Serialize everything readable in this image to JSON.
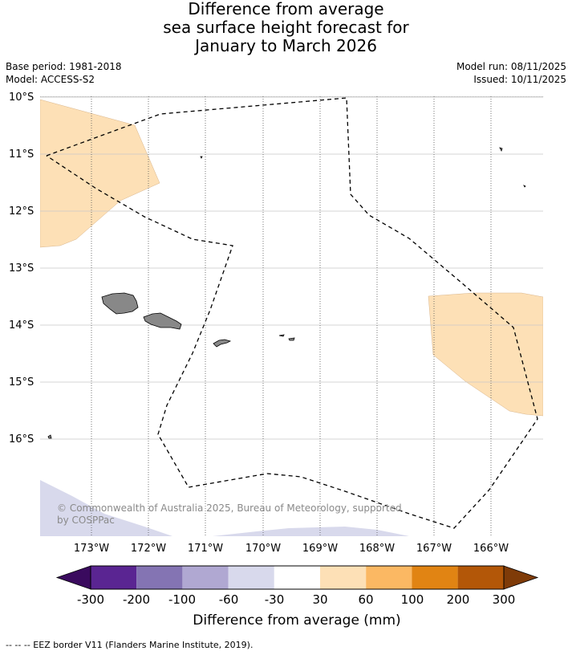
{
  "title": {
    "line1": "Difference from average",
    "line2": "sea surface height forecast for",
    "line3": "January to March 2026"
  },
  "meta": {
    "base_period": "Base period: 1981-2018",
    "model": "Model: ACCESS-S2",
    "model_run": "Model run: 08/11/2025",
    "issued": "Issued: 10/11/2025"
  },
  "map": {
    "lat_labels": [
      "10°S",
      "11°S",
      "12°S",
      "13°S",
      "14°S",
      "15°S",
      "16°S"
    ],
    "lon_labels": [
      "173°W",
      "172°W",
      "171°W",
      "170°W",
      "169°W",
      "168°W",
      "167°W",
      "166°W"
    ],
    "land_color": "#888888",
    "positive_anomaly_color": "#fde0b6",
    "negative_anomaly_color": "#d8d9ec",
    "copyright": "© Commonwealth of Australia 2025, Bureau of Meteorology, supported by COSPPac"
  },
  "colorbar": {
    "tick_labels": [
      "-300",
      "-200",
      "-100",
      "-60",
      "-30",
      "30",
      "60",
      "100",
      "200",
      "300"
    ],
    "colors": [
      "#5a2592",
      "#8474b3",
      "#b0a8d2",
      "#d8d9ec",
      "#ffffff",
      "#fde0b6",
      "#fbb863",
      "#e18413",
      "#b35708"
    ],
    "under_color": "#3a0a5e",
    "over_color": "#7f3b08",
    "label": "Difference from average (mm)"
  },
  "footnote": "--  --  -- EEZ border V11 (Flanders Marine Institute, 2019)."
}
